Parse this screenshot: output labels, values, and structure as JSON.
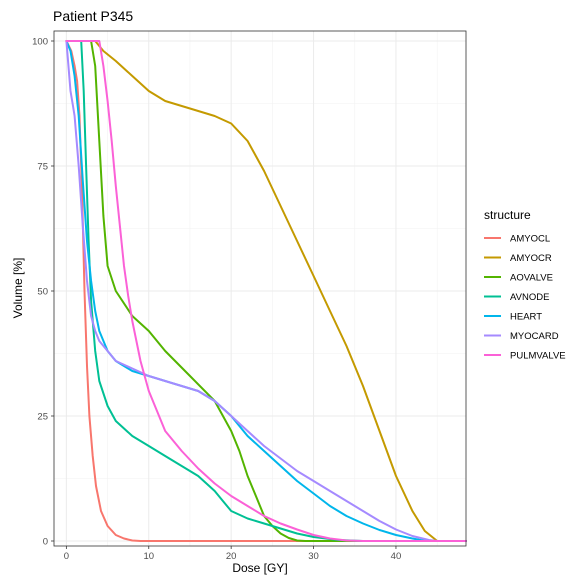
{
  "chart_data": {
    "type": "line",
    "title": "Patient P345",
    "xlabel": "Dose [GY]",
    "ylabel": "Volume [%]",
    "xlim": [
      -1.5,
      48.5
    ],
    "ylim": [
      -1,
      102
    ],
    "x_ticks": [
      0,
      10,
      20,
      30,
      40
    ],
    "y_ticks": [
      0,
      25,
      50,
      75,
      100
    ],
    "grid": true,
    "legend": {
      "title": "structure",
      "placement": "right"
    },
    "series": [
      {
        "name": "AMYOCL",
        "color": "#F8766D",
        "x": [
          0,
          0.6,
          1.0,
          1.3,
          1.6,
          1.9,
          2.2,
          2.5,
          2.8,
          3.2,
          3.6,
          4.2,
          5.0,
          6.0,
          7.0,
          8.0,
          9.0,
          48.5
        ],
        "y": [
          100,
          98,
          95,
          92,
          85,
          70,
          50,
          35,
          25,
          17,
          11,
          6,
          3,
          1.2,
          0.5,
          0.1,
          0,
          0
        ]
      },
      {
        "name": "AMYOCR",
        "color": "#C49A00",
        "x": [
          0,
          3.5,
          4.5,
          6,
          8,
          10,
          12,
          15,
          18,
          20,
          22,
          24,
          26,
          28,
          30,
          32,
          34,
          36,
          38,
          40,
          42,
          43.5,
          45,
          48.5
        ],
        "y": [
          100,
          100,
          98,
          96,
          93,
          90,
          88,
          86.5,
          85,
          83.5,
          80,
          74,
          67,
          60,
          53,
          46,
          39,
          31,
          22,
          13,
          6,
          2,
          0,
          0
        ]
      },
      {
        "name": "AOVALVE",
        "color": "#53B400",
        "x": [
          0,
          3,
          3.5,
          4,
          4.5,
          5,
          6,
          8,
          10,
          12,
          15,
          18,
          20,
          21,
          22,
          23,
          24,
          25,
          26,
          27,
          28,
          29,
          48.5
        ],
        "y": [
          100,
          100,
          95,
          80,
          65,
          55,
          50,
          45,
          42,
          38,
          33,
          28,
          22,
          18,
          13,
          9,
          5,
          3,
          1.5,
          0.6,
          0.1,
          0,
          0
        ]
      },
      {
        "name": "AVNODE",
        "color": "#00C094",
        "x": [
          0,
          1.8,
          2.1,
          2.4,
          2.7,
          3.0,
          3.5,
          4,
          5,
          6,
          8,
          10,
          12,
          14,
          16,
          18,
          19,
          20,
          22,
          24,
          26,
          28,
          30,
          33,
          36,
          48.5
        ],
        "y": [
          100,
          100,
          90,
          75,
          60,
          48,
          38,
          32,
          27,
          24,
          21,
          19,
          17,
          15,
          13,
          10,
          8,
          6,
          4.5,
          3.5,
          2.5,
          1.5,
          0.8,
          0.2,
          0,
          0
        ]
      },
      {
        "name": "HEART",
        "color": "#00B6EB",
        "x": [
          0,
          0.5,
          1,
          1.5,
          2,
          2.5,
          3,
          3.5,
          4,
          5,
          6,
          8,
          10,
          12,
          14,
          16,
          18,
          20,
          22,
          24,
          26,
          28,
          30,
          32,
          34,
          36,
          38,
          40,
          42,
          43,
          44,
          48.5
        ],
        "y": [
          100,
          98,
          93,
          85,
          72,
          60,
          52,
          46,
          42,
          38,
          36,
          34,
          33,
          32,
          31,
          30,
          28,
          25,
          21,
          18,
          15,
          12,
          9.5,
          7,
          5,
          3.5,
          2.2,
          1.2,
          0.5,
          0.2,
          0,
          0
        ]
      },
      {
        "name": "MYOCARD",
        "color": "#A58AFF",
        "x": [
          0,
          0.5,
          0.8,
          1,
          1.5,
          2,
          2.5,
          3,
          3.5,
          4,
          5,
          6,
          8,
          10,
          12,
          14,
          16,
          18,
          20,
          22,
          24,
          26,
          28,
          30,
          32,
          34,
          36,
          38,
          40,
          42,
          44,
          45,
          48.5
        ],
        "y": [
          100,
          90,
          87,
          85,
          75,
          63,
          52,
          45,
          42,
          40,
          38,
          36,
          34.5,
          33,
          32,
          31,
          30,
          28,
          25,
          22,
          19,
          16.5,
          14,
          12,
          10,
          8,
          6,
          4,
          2.3,
          1,
          0.2,
          0,
          0
        ]
      },
      {
        "name": "PULMVALVE",
        "color": "#FB61D7",
        "x": [
          0,
          4,
          4.5,
          5,
          5.5,
          6,
          6.5,
          7,
          7.5,
          8,
          8.5,
          9,
          10,
          11,
          12,
          14,
          16,
          18,
          20,
          22,
          24,
          26,
          28,
          30,
          32,
          34,
          36,
          48.5
        ],
        "y": [
          100,
          100,
          95,
          88,
          80,
          71,
          63,
          55,
          49,
          44,
          40,
          36,
          30,
          26,
          22,
          18,
          14.5,
          11.5,
          9,
          7,
          5,
          3.5,
          2.3,
          1.2,
          0.5,
          0.1,
          0,
          0
        ]
      }
    ]
  }
}
